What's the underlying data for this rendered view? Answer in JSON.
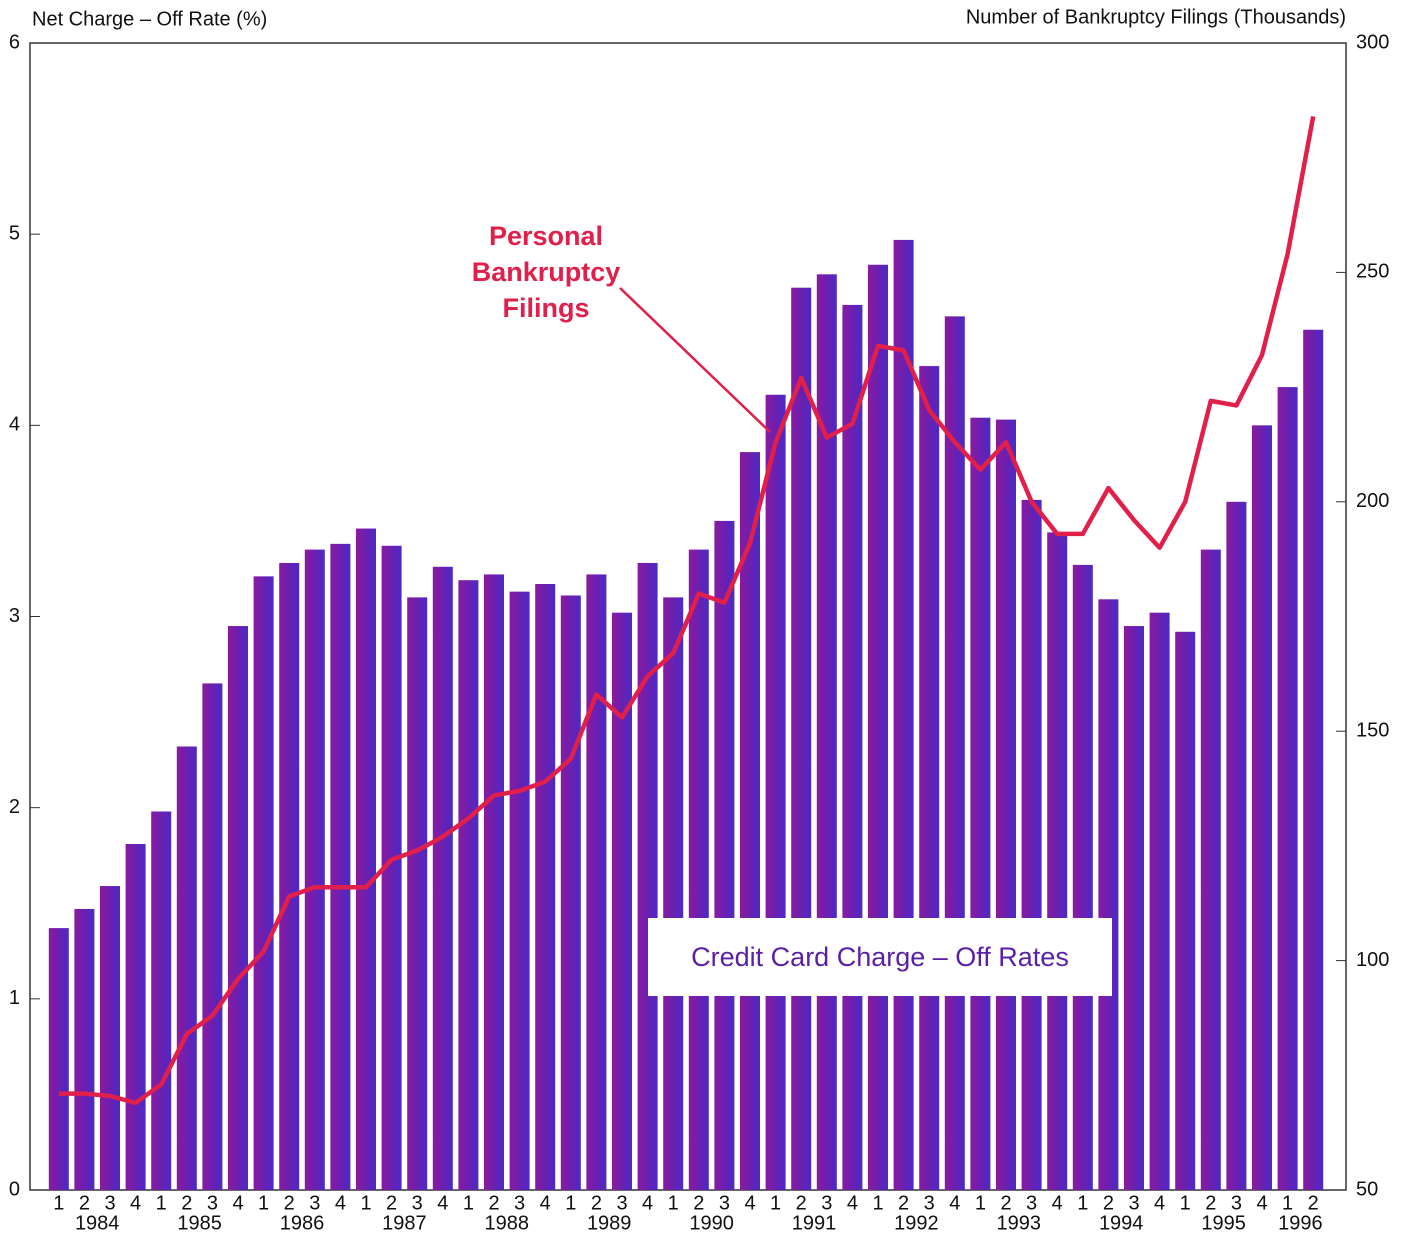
{
  "chart_data": {
    "type": "bar_line",
    "y_label": "Net Charge – Off Rate (%)",
    "y2_label": "Number of Bankruptcy Filings (Thousands)",
    "categories": [
      "1",
      "2",
      "3",
      "4",
      "1",
      "2",
      "3",
      "4",
      "1",
      "2",
      "3",
      "4",
      "1",
      "2",
      "3",
      "4",
      "1",
      "2",
      "3",
      "4",
      "1",
      "2",
      "3",
      "4",
      "1",
      "2",
      "3",
      "4",
      "1",
      "2",
      "3",
      "4",
      "1",
      "2",
      "3",
      "4",
      "1",
      "2",
      "3",
      "4",
      "1",
      "2",
      "3",
      "4",
      "1",
      "2",
      "3",
      "4",
      "1",
      "2"
    ],
    "years": [
      "1984",
      "1985",
      "1986",
      "1987",
      "1988",
      "1989",
      "1990",
      "1991",
      "1992",
      "1993",
      "1994",
      "1995",
      "1996"
    ],
    "ylim": [
      0,
      6
    ],
    "yticks": [
      0,
      1,
      2,
      3,
      4,
      5,
      6
    ],
    "y2lim": [
      50,
      300
    ],
    "y2ticks": [
      50,
      100,
      150,
      200,
      250,
      300
    ],
    "series": [
      {
        "name": "Credit Card Charge – Off Rates",
        "color": "#5b22b5",
        "type": "bar",
        "values": [
          1.37,
          1.47,
          1.59,
          1.81,
          1.98,
          2.32,
          2.65,
          2.95,
          3.21,
          3.28,
          3.35,
          3.38,
          3.46,
          3.37,
          3.1,
          3.26,
          3.19,
          3.22,
          3.13,
          3.17,
          3.11,
          3.22,
          3.02,
          3.28,
          3.1,
          3.35,
          3.5,
          3.86,
          4.16,
          4.72,
          4.79,
          4.63,
          4.84,
          4.97,
          4.31,
          4.57,
          4.04,
          4.03,
          3.61,
          3.44,
          3.27,
          3.09,
          2.95,
          3.02,
          2.92,
          3.35,
          3.6,
          4.0,
          4.2,
          4.5
        ]
      },
      {
        "name": "Personal Bankruptcy Filings",
        "label_lines": [
          "Personal",
          "Bankruptcy",
          "Filings"
        ],
        "color": "#e0204a",
        "type": "line",
        "axis": "y2",
        "values": [
          71,
          71,
          70.5,
          69,
          73,
          84,
          88,
          96,
          102,
          114,
          116,
          116,
          116,
          122,
          124,
          127,
          131,
          136,
          137,
          139,
          144,
          158,
          153,
          162,
          167,
          180,
          178,
          191,
          213,
          227,
          214,
          217,
          234,
          233,
          220,
          213,
          207,
          213,
          200,
          193,
          193,
          203,
          196,
          190,
          200,
          222,
          221,
          232,
          254,
          284
        ]
      }
    ]
  }
}
